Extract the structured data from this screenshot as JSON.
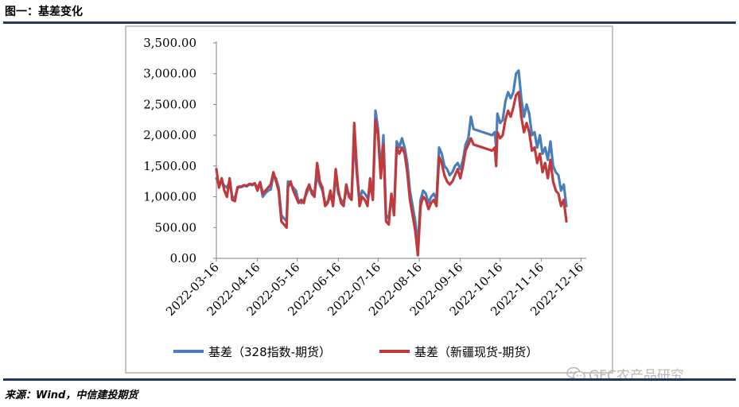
{
  "header": {
    "title": "图一：基差变化"
  },
  "footer": {
    "source": "来源：Wind，中信建投期货"
  },
  "watermark": {
    "text": "GFC农产品研究",
    "icon": "wechat-icon"
  },
  "chart_data": {
    "type": "line",
    "ylim": [
      0,
      3500
    ],
    "yticks": [
      "0.00",
      "500.00",
      "1,000.00",
      "1,500.00",
      "2,000.00",
      "2,500.00",
      "3,000.00",
      "3,500.00"
    ],
    "xticks": [
      "2022-03-16",
      "2022-04-16",
      "2022-05-16",
      "2022-06-16",
      "2022-07-16",
      "2022-08-16",
      "2022-09-16",
      "2022-10-16",
      "2022-11-16",
      "2022-12-16"
    ],
    "grid": false,
    "legend": "bottom",
    "series": [
      {
        "name": "基差（328指数-期货）",
        "color": "#4a7ebb",
        "points": [
          [
            "2022-03-16",
            1300
          ],
          [
            "2022-03-18",
            1200
          ],
          [
            "2022-03-20",
            1250
          ],
          [
            "2022-03-22",
            1180
          ],
          [
            "2022-03-24",
            1150
          ],
          [
            "2022-03-26",
            1250
          ],
          [
            "2022-03-28",
            1000
          ],
          [
            "2022-03-30",
            980
          ],
          [
            "2022-04-01",
            1150
          ],
          [
            "2022-04-04",
            1160
          ],
          [
            "2022-04-06",
            1180
          ],
          [
            "2022-04-08",
            1170
          ],
          [
            "2022-04-10",
            1200
          ],
          [
            "2022-04-12",
            1190
          ],
          [
            "2022-04-14",
            1210
          ],
          [
            "2022-04-16",
            1150
          ],
          [
            "2022-04-18",
            1230
          ],
          [
            "2022-04-20",
            1000
          ],
          [
            "2022-04-22",
            1060
          ],
          [
            "2022-04-24",
            1100
          ],
          [
            "2022-04-26",
            1120
          ],
          [
            "2022-04-28",
            1350
          ],
          [
            "2022-04-30",
            1300
          ],
          [
            "2022-05-02",
            1150
          ],
          [
            "2022-05-04",
            700
          ],
          [
            "2022-05-06",
            650
          ],
          [
            "2022-05-08",
            600
          ],
          [
            "2022-05-09",
            1250
          ],
          [
            "2022-05-11",
            1200
          ],
          [
            "2022-05-13",
            1150
          ],
          [
            "2022-05-15",
            1100
          ],
          [
            "2022-05-17",
            920
          ],
          [
            "2022-05-19",
            900
          ],
          [
            "2022-05-21",
            950
          ],
          [
            "2022-05-23",
            1050
          ],
          [
            "2022-05-25",
            1150
          ],
          [
            "2022-05-27",
            1100
          ],
          [
            "2022-05-29",
            1050
          ],
          [
            "2022-05-31",
            1350
          ],
          [
            "2022-06-02",
            1200
          ],
          [
            "2022-06-04",
            1100
          ],
          [
            "2022-06-06",
            900
          ],
          [
            "2022-06-08",
            920
          ],
          [
            "2022-06-10",
            1000
          ],
          [
            "2022-06-12",
            900
          ],
          [
            "2022-06-14",
            1350
          ],
          [
            "2022-06-16",
            1050
          ],
          [
            "2022-06-18",
            950
          ],
          [
            "2022-06-20",
            900
          ],
          [
            "2022-06-22",
            1100
          ],
          [
            "2022-06-24",
            1050
          ],
          [
            "2022-06-26",
            1000
          ],
          [
            "2022-06-28",
            1950
          ],
          [
            "2022-06-30",
            1350
          ],
          [
            "2022-07-02",
            950
          ],
          [
            "2022-07-04",
            1100
          ],
          [
            "2022-07-06",
            1050
          ],
          [
            "2022-07-08",
            980
          ],
          [
            "2022-07-10",
            1150
          ],
          [
            "2022-07-12",
            1000
          ],
          [
            "2022-07-14",
            2400
          ],
          [
            "2022-07-16",
            2100
          ],
          [
            "2022-07-18",
            1400
          ],
          [
            "2022-07-20",
            2000
          ],
          [
            "2022-07-22",
            700
          ],
          [
            "2022-07-24",
            650
          ],
          [
            "2022-07-26",
            1000
          ],
          [
            "2022-07-28",
            750
          ],
          [
            "2022-07-30",
            1900
          ],
          [
            "2022-08-01",
            1800
          ],
          [
            "2022-08-03",
            1950
          ],
          [
            "2022-08-05",
            1800
          ],
          [
            "2022-08-07",
            1550
          ],
          [
            "2022-08-09",
            1100
          ],
          [
            "2022-08-11",
            850
          ],
          [
            "2022-08-13",
            600
          ],
          [
            "2022-08-15",
            200
          ],
          [
            "2022-08-17",
            950
          ],
          [
            "2022-08-19",
            1100
          ],
          [
            "2022-08-21",
            1050
          ],
          [
            "2022-08-23",
            900
          ],
          [
            "2022-08-25",
            1000
          ],
          [
            "2022-08-27",
            1050
          ],
          [
            "2022-08-29",
            950
          ],
          [
            "2022-08-31",
            1800
          ],
          [
            "2022-09-02",
            1700
          ],
          [
            "2022-09-04",
            1500
          ],
          [
            "2022-09-06",
            1450
          ],
          [
            "2022-09-08",
            1350
          ],
          [
            "2022-09-10",
            1400
          ],
          [
            "2022-09-12",
            1500
          ],
          [
            "2022-09-14",
            1550
          ],
          [
            "2022-09-16",
            1450
          ],
          [
            "2022-09-18",
            1600
          ],
          [
            "2022-09-20",
            1850
          ],
          [
            "2022-09-22",
            1950
          ],
          [
            "2022-09-24",
            2300
          ],
          [
            "2022-09-26",
            2100
          ],
          [
            "2022-10-10",
            2000
          ],
          [
            "2022-10-12",
            2050
          ],
          [
            "2022-10-13",
            1800
          ],
          [
            "2022-10-14",
            2350
          ],
          [
            "2022-10-16",
            2200
          ],
          [
            "2022-10-18",
            2250
          ],
          [
            "2022-10-20",
            2550
          ],
          [
            "2022-10-22",
            2700
          ],
          [
            "2022-10-24",
            2600
          ],
          [
            "2022-10-26",
            2700
          ],
          [
            "2022-10-28",
            3000
          ],
          [
            "2022-10-30",
            3050
          ],
          [
            "2022-11-01",
            2600
          ],
          [
            "2022-11-03",
            2300
          ],
          [
            "2022-11-05",
            2500
          ],
          [
            "2022-11-07",
            2350
          ],
          [
            "2022-11-09",
            2000
          ],
          [
            "2022-11-11",
            2050
          ],
          [
            "2022-11-13",
            1800
          ],
          [
            "2022-11-15",
            2000
          ],
          [
            "2022-11-17",
            1700
          ],
          [
            "2022-11-19",
            1800
          ],
          [
            "2022-11-21",
            1600
          ],
          [
            "2022-11-23",
            1900
          ],
          [
            "2022-11-25",
            1500
          ],
          [
            "2022-11-27",
            1400
          ],
          [
            "2022-11-29",
            1350
          ],
          [
            "2022-12-01",
            1100
          ],
          [
            "2022-12-03",
            1200
          ],
          [
            "2022-12-05",
            850
          ]
        ]
      },
      {
        "name": "基差（新疆现货-期货）",
        "color": "#c0393b",
        "points": [
          [
            "2022-03-16",
            1450
          ],
          [
            "2022-03-18",
            1150
          ],
          [
            "2022-03-20",
            1300
          ],
          [
            "2022-03-22",
            1100
          ],
          [
            "2022-03-24",
            1000
          ],
          [
            "2022-03-26",
            1300
          ],
          [
            "2022-03-28",
            950
          ],
          [
            "2022-03-30",
            930
          ],
          [
            "2022-04-01",
            1160
          ],
          [
            "2022-04-04",
            1170
          ],
          [
            "2022-04-06",
            1190
          ],
          [
            "2022-04-08",
            1180
          ],
          [
            "2022-04-10",
            1210
          ],
          [
            "2022-04-12",
            1200
          ],
          [
            "2022-04-14",
            1220
          ],
          [
            "2022-04-16",
            1100
          ],
          [
            "2022-04-18",
            1240
          ],
          [
            "2022-04-20",
            1050
          ],
          [
            "2022-04-22",
            1100
          ],
          [
            "2022-04-24",
            1150
          ],
          [
            "2022-04-26",
            1200
          ],
          [
            "2022-04-28",
            1400
          ],
          [
            "2022-04-30",
            1250
          ],
          [
            "2022-05-02",
            1100
          ],
          [
            "2022-05-04",
            600
          ],
          [
            "2022-05-06",
            550
          ],
          [
            "2022-05-08",
            500
          ],
          [
            "2022-05-09",
            1150
          ],
          [
            "2022-05-11",
            1250
          ],
          [
            "2022-05-13",
            1100
          ],
          [
            "2022-05-15",
            1000
          ],
          [
            "2022-05-17",
            900
          ],
          [
            "2022-05-19",
            950
          ],
          [
            "2022-05-21",
            900
          ],
          [
            "2022-05-23",
            1100
          ],
          [
            "2022-05-25",
            1200
          ],
          [
            "2022-05-27",
            1050
          ],
          [
            "2022-05-29",
            1000
          ],
          [
            "2022-05-31",
            1550
          ],
          [
            "2022-06-02",
            1250
          ],
          [
            "2022-06-04",
            1150
          ],
          [
            "2022-06-06",
            850
          ],
          [
            "2022-06-08",
            900
          ],
          [
            "2022-06-10",
            1100
          ],
          [
            "2022-06-12",
            850
          ],
          [
            "2022-06-14",
            1450
          ],
          [
            "2022-06-16",
            1100
          ],
          [
            "2022-06-18",
            900
          ],
          [
            "2022-06-20",
            850
          ],
          [
            "2022-06-22",
            1200
          ],
          [
            "2022-06-24",
            1000
          ],
          [
            "2022-06-26",
            950
          ],
          [
            "2022-06-28",
            2200
          ],
          [
            "2022-06-30",
            1450
          ],
          [
            "2022-07-02",
            850
          ],
          [
            "2022-07-04",
            1000
          ],
          [
            "2022-07-06",
            950
          ],
          [
            "2022-07-08",
            850
          ],
          [
            "2022-07-10",
            1300
          ],
          [
            "2022-07-12",
            950
          ],
          [
            "2022-07-14",
            2250
          ],
          [
            "2022-07-16",
            2000
          ],
          [
            "2022-07-18",
            1300
          ],
          [
            "2022-07-20",
            1850
          ],
          [
            "2022-07-22",
            600
          ],
          [
            "2022-07-24",
            550
          ],
          [
            "2022-07-26",
            1050
          ],
          [
            "2022-07-28",
            700
          ],
          [
            "2022-07-30",
            1800
          ],
          [
            "2022-08-01",
            1700
          ],
          [
            "2022-08-03",
            1800
          ],
          [
            "2022-08-05",
            1700
          ],
          [
            "2022-08-07",
            1400
          ],
          [
            "2022-08-09",
            950
          ],
          [
            "2022-08-11",
            700
          ],
          [
            "2022-08-13",
            450
          ],
          [
            "2022-08-15",
            50
          ],
          [
            "2022-08-17",
            850
          ],
          [
            "2022-08-19",
            1000
          ],
          [
            "2022-08-21",
            950
          ],
          [
            "2022-08-23",
            800
          ],
          [
            "2022-08-25",
            900
          ],
          [
            "2022-08-27",
            950
          ],
          [
            "2022-08-29",
            850
          ],
          [
            "2022-08-31",
            1650
          ],
          [
            "2022-09-02",
            1550
          ],
          [
            "2022-09-04",
            1350
          ],
          [
            "2022-09-06",
            1250
          ],
          [
            "2022-09-08",
            1200
          ],
          [
            "2022-09-10",
            1250
          ],
          [
            "2022-09-12",
            1350
          ],
          [
            "2022-09-14",
            1450
          ],
          [
            "2022-09-16",
            1300
          ],
          [
            "2022-09-18",
            1500
          ],
          [
            "2022-09-20",
            1750
          ],
          [
            "2022-09-22",
            1850
          ],
          [
            "2022-09-24",
            1950
          ],
          [
            "2022-09-26",
            1850
          ],
          [
            "2022-10-10",
            1750
          ],
          [
            "2022-10-12",
            1800
          ],
          [
            "2022-10-13",
            1500
          ],
          [
            "2022-10-14",
            2050
          ],
          [
            "2022-10-16",
            1950
          ],
          [
            "2022-10-18",
            2000
          ],
          [
            "2022-10-20",
            2250
          ],
          [
            "2022-10-22",
            2400
          ],
          [
            "2022-10-24",
            2300
          ],
          [
            "2022-10-26",
            2450
          ],
          [
            "2022-10-28",
            2650
          ],
          [
            "2022-10-30",
            2700
          ],
          [
            "2022-11-01",
            2300
          ],
          [
            "2022-11-03",
            2050
          ],
          [
            "2022-11-05",
            2200
          ],
          [
            "2022-11-07",
            2050
          ],
          [
            "2022-11-09",
            1750
          ],
          [
            "2022-11-11",
            1800
          ],
          [
            "2022-11-13",
            1550
          ],
          [
            "2022-11-15",
            1700
          ],
          [
            "2022-11-17",
            1400
          ],
          [
            "2022-11-19",
            1550
          ],
          [
            "2022-11-21",
            1300
          ],
          [
            "2022-11-23",
            1600
          ],
          [
            "2022-11-25",
            1250
          ],
          [
            "2022-11-27",
            1100
          ],
          [
            "2022-11-29",
            1050
          ],
          [
            "2022-12-01",
            850
          ],
          [
            "2022-12-03",
            950
          ],
          [
            "2022-12-05",
            600
          ]
        ]
      }
    ]
  }
}
